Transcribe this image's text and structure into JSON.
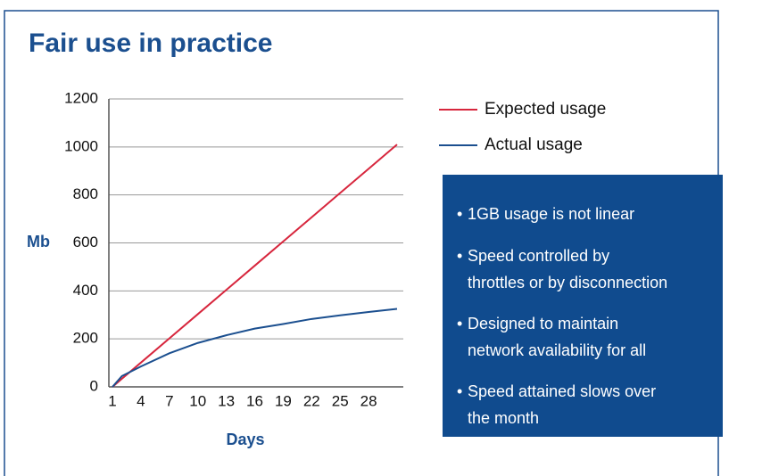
{
  "chart_data": {
    "type": "line",
    "title": "Fair use in practice",
    "x_label": "Days",
    "y_label": "Mb",
    "x": [
      1,
      2,
      4,
      7,
      10,
      13,
      16,
      19,
      22,
      25,
      28,
      31
    ],
    "series": [
      {
        "name": "Expected usage",
        "color": "#d7263d",
        "values": [
          0,
          34,
          101,
          202,
          303,
          404,
          505,
          606,
          707,
          808,
          909,
          1010
        ]
      },
      {
        "name": "Actual usage",
        "color": "#1b4f8f",
        "values": [
          0,
          45,
          85,
          140,
          183,
          215,
          243,
          262,
          283,
          298,
          312,
          325
        ]
      }
    ],
    "xlim": [
      1,
      31
    ],
    "xticks": [
      1,
      4,
      7,
      10,
      13,
      16,
      19,
      22,
      25,
      28
    ],
    "ylim": [
      0,
      1200
    ],
    "yticks": [
      0,
      200,
      400,
      600,
      800,
      1000,
      1200
    ],
    "grid": true,
    "notes": [
      [
        "1GB usage is not linear"
      ],
      [
        "Speed controlled by",
        "throttles or by disconnection"
      ],
      [
        "Designed to maintain",
        "network availability for all"
      ],
      [
        "Speed attained slows over",
        "the month"
      ]
    ]
  }
}
